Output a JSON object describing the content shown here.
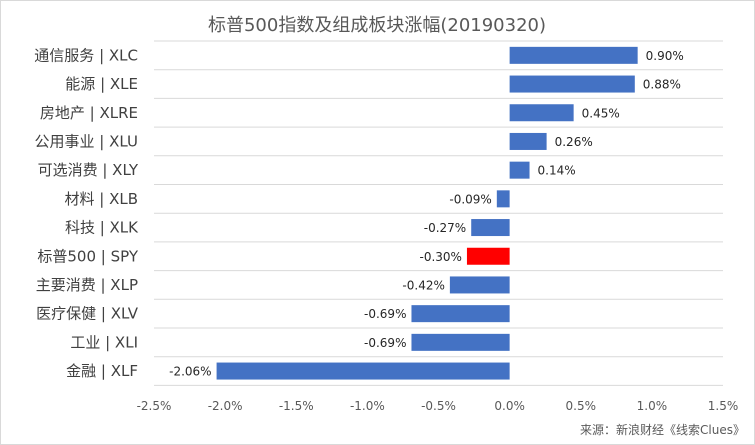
{
  "chart_data": {
    "type": "bar",
    "orientation": "horizontal",
    "title": "标普500指数及组成板块涨幅(20190320)",
    "categories": [
      "通信服务 | XLC",
      "能源 | XLE",
      "房地产 | XLRE",
      "公用事业 | XLU",
      "可选消费 | XLY",
      "材料 | XLB",
      "科技 | XLK",
      "标普500 | SPY",
      "主要消费 | XLP",
      "医疗保健 | XLV",
      "工业 | XLI",
      "金融 | XLF"
    ],
    "values": [
      0.9,
      0.88,
      0.45,
      0.26,
      0.14,
      -0.09,
      -0.27,
      -0.3,
      -0.42,
      -0.69,
      -0.69,
      -2.06
    ],
    "value_labels": [
      "0.90%",
      "0.88%",
      "0.45%",
      "0.26%",
      "0.14%",
      "-0.09%",
      "-0.27%",
      "-0.30%",
      "-0.42%",
      "-0.69%",
      "-0.69%",
      "-2.06%"
    ],
    "bar_colors": [
      "#4472c4",
      "#4472c4",
      "#4472c4",
      "#4472c4",
      "#4472c4",
      "#4472c4",
      "#4472c4",
      "#ff0000",
      "#4472c4",
      "#4472c4",
      "#4472c4",
      "#4472c4"
    ],
    "xlim": [
      -2.5,
      1.5
    ],
    "x_ticks": [
      -2.5,
      -2.0,
      -1.5,
      -1.0,
      -0.5,
      0.0,
      0.5,
      1.0,
      1.5
    ],
    "x_tick_labels": [
      "-2.5%",
      "-2.0%",
      "-1.5%",
      "-1.0%",
      "-0.5%",
      "0.0%",
      "0.5%",
      "1.0%",
      "1.5%"
    ],
    "xlabel": "",
    "ylabel": "",
    "grid": "horizontal",
    "legend": "none",
    "source": "来源：新浪财经《线索Clues》"
  }
}
